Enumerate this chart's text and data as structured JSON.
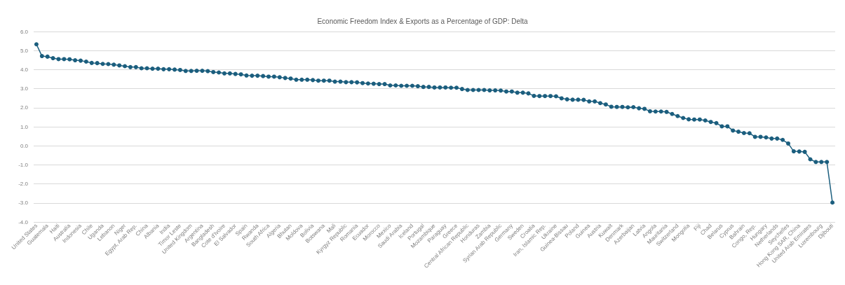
{
  "chart_data": {
    "type": "line",
    "title": "Economic Freedom Index & Exports as a Percentage of GDP: Delta",
    "categories": [
      "United States",
      null,
      "Guatemala",
      null,
      "Haiti",
      null,
      "Australia",
      null,
      "Indonesia",
      null,
      "Chile",
      null,
      "Uganda",
      null,
      "Lebanon",
      null,
      "Niger",
      null,
      "Egypt, Arab Rep.",
      null,
      "China",
      null,
      "Albania",
      null,
      "India",
      null,
      "Timor Leste",
      null,
      "United Kingdom",
      null,
      "Argentina",
      null,
      "Bangladesh",
      null,
      "Cote d'Ivoire",
      null,
      "El Salvador",
      null,
      "Spain",
      null,
      "Rwanda",
      null,
      "South Africa",
      null,
      "Algeria",
      null,
      "Bhutan",
      null,
      "Moldova",
      null,
      "Bolivia",
      null,
      "Botswana",
      null,
      "Mali",
      null,
      "Kyrgyz Republic",
      null,
      "Romania",
      null,
      "Ecuador",
      null,
      "Morocco",
      null,
      "Mexico",
      null,
      "Saudi Arabia",
      null,
      "Iceland",
      null,
      "Portugal",
      null,
      "Mozambique",
      null,
      "Paraguay",
      null,
      "Greece",
      null,
      "Central African Republic",
      null,
      "Honduras",
      null,
      "Zambia",
      null,
      "Syrian Arab Republic",
      null,
      "Germany",
      null,
      "Sweden",
      null,
      "Croatia",
      null,
      "Iran, Islamic Rep.",
      null,
      "Ukraine",
      null,
      "Guinea-Bissau",
      null,
      "Poland",
      null,
      "Guinea",
      null,
      "Austria",
      null,
      "Kuwait",
      null,
      "Denmark",
      null,
      "Azerbaijan",
      null,
      "Latvia",
      null,
      "Angola",
      null,
      "Mauritania",
      null,
      "Switzerland",
      null,
      "Mongolia",
      null,
      "Fiji",
      null,
      "Chad",
      null,
      "Belarus",
      null,
      "Cyprus",
      null,
      "Bahrain",
      null,
      "Congo, Rep.",
      null,
      "Hungary",
      null,
      "Netherlands",
      null,
      "Seychelles",
      null,
      "Hong Kong SAR, China",
      null,
      "United Arab Emirates",
      null,
      "Luxembourg",
      null,
      "Djibouti"
    ],
    "series": [
      {
        "color": "#1b5e7e",
        "values": [
          5.33,
          4.71,
          4.68,
          4.6,
          4.55,
          4.55,
          4.54,
          4.49,
          4.47,
          4.42,
          4.35,
          4.34,
          4.3,
          4.29,
          4.26,
          4.22,
          4.18,
          4.13,
          4.13,
          4.07,
          4.07,
          4.05,
          4.05,
          4.02,
          4.02,
          4.0,
          3.98,
          3.93,
          3.93,
          3.94,
          3.94,
          3.92,
          3.87,
          3.85,
          3.8,
          3.8,
          3.77,
          3.75,
          3.69,
          3.68,
          3.68,
          3.66,
          3.63,
          3.63,
          3.6,
          3.56,
          3.53,
          3.47,
          3.47,
          3.47,
          3.45,
          3.42,
          3.42,
          3.42,
          3.37,
          3.37,
          3.34,
          3.34,
          3.33,
          3.29,
          3.27,
          3.26,
          3.24,
          3.24,
          3.17,
          3.17,
          3.15,
          3.15,
          3.15,
          3.13,
          3.09,
          3.09,
          3.06,
          3.06,
          3.06,
          3.05,
          3.05,
          2.98,
          2.93,
          2.93,
          2.93,
          2.93,
          2.91,
          2.91,
          2.9,
          2.85,
          2.85,
          2.79,
          2.79,
          2.75,
          2.62,
          2.61,
          2.61,
          2.61,
          2.6,
          2.49,
          2.44,
          2.42,
          2.42,
          2.41,
          2.33,
          2.33,
          2.24,
          2.17,
          2.05,
          2.04,
          2.04,
          2.02,
          2.03,
          1.97,
          1.94,
          1.81,
          1.8,
          1.8,
          1.78,
          1.67,
          1.56,
          1.46,
          1.39,
          1.38,
          1.38,
          1.33,
          1.25,
          1.19,
          1.02,
          1.02,
          0.8,
          0.74,
          0.67,
          0.66,
          0.47,
          0.47,
          0.44,
          0.38,
          0.38,
          0.31,
          0.12,
          -0.29,
          -0.3,
          -0.32,
          -0.71,
          -0.85,
          -0.85,
          -0.85,
          -2.98
        ]
      }
    ],
    "ylim": [
      -4,
      6
    ],
    "yticks": [
      {
        "value": -4,
        "label": "-4.0"
      },
      {
        "value": -3,
        "label": "-3.0"
      },
      {
        "value": -2,
        "label": "-2.0"
      },
      {
        "value": -1,
        "label": "-1.0"
      },
      {
        "value": 0,
        "label": "0.0"
      },
      {
        "value": 1,
        "label": "1.0"
      },
      {
        "value": 2,
        "label": "2.0"
      },
      {
        "value": 3,
        "label": "3.0"
      },
      {
        "value": 4,
        "label": "4.0"
      },
      {
        "value": 5,
        "label": "5.0"
      },
      {
        "value": 6,
        "label": "6.0"
      }
    ],
    "grid": "y",
    "marker": "circle",
    "line_style": "solid"
  }
}
